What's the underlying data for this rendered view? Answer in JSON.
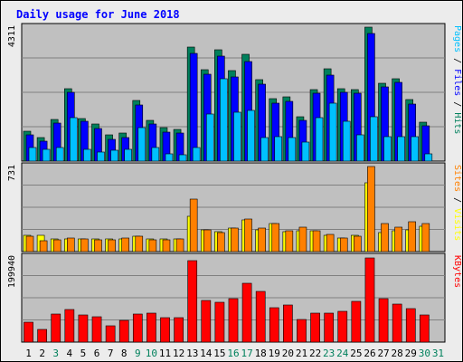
{
  "chart_data": {
    "type": "bar",
    "title": "Daily usage for June 2018",
    "x": [
      "1",
      "2",
      "3",
      "4",
      "5",
      "6",
      "7",
      "8",
      "9",
      "10",
      "11",
      "12",
      "13",
      "14",
      "15",
      "16",
      "17",
      "18",
      "19",
      "20",
      "21",
      "22",
      "23",
      "24",
      "25",
      "26",
      "27",
      "28",
      "29",
      "30",
      "31"
    ],
    "weekend_days": [
      "3",
      "9",
      "10",
      "16",
      "17",
      "23",
      "24",
      "30",
      "31"
    ],
    "panels": [
      {
        "id": "hits-files-pages",
        "ymax": 4311,
        "ymax_label": "4311",
        "legend": [
          {
            "text": "Pages",
            "color": "#00c0ff"
          },
          {
            "text": " / ",
            "color": "#000000"
          },
          {
            "text": "Files",
            "color": "#0000ff"
          },
          {
            "text": " / ",
            "color": "#000000"
          },
          {
            "text": "Hits",
            "color": "#00805c"
          }
        ],
        "series": [
          {
            "name": "Hits",
            "color": "#00805c",
            "values": [
              975,
              747,
              1347,
              2337,
              1370,
              1192,
              844,
              893,
              1951,
              1313,
              1066,
              1012,
              3665,
              2930,
              3576,
              2916,
              3450,
              2608,
              2005,
              2072,
              1436,
              2305,
              2985,
              2339,
              2307,
              4311,
              2517,
              2658,
              1982,
              1258,
              null
            ]
          },
          {
            "name": "Files",
            "color": "#0000ff",
            "values": [
              846,
              647,
              1216,
              2216,
              1292,
              1054,
              705,
              767,
              1811,
              1192,
              943,
              899,
              3479,
              2805,
              3380,
              2711,
              3201,
              2479,
              1870,
              1934,
              1297,
              2181,
              2766,
              2203,
              2171,
              4105,
              2375,
              2529,
              1828,
              1134,
              null
            ]
          },
          {
            "name": "Pages",
            "color": "#00c0ff",
            "values": [
              450,
              380,
              449,
              1393,
              380,
              289,
              339,
              380,
              1088,
              444,
              239,
              215,
              444,
              1507,
              2637,
              1572,
              1644,
              752,
              798,
              758,
              600,
              1387,
              1851,
              1281,
              833,
              1419,
              790,
              784,
              789,
              245,
              null
            ]
          }
        ]
      },
      {
        "id": "visits-sites",
        "ymax": 731,
        "ymax_label": "731",
        "legend": [
          {
            "text": "Sites",
            "color": "#ff8000"
          },
          {
            "text": " / ",
            "color": "#000000"
          },
          {
            "text": "Visits",
            "color": "#ffff00"
          }
        ],
        "series": [
          {
            "name": "Visits",
            "color": "#ffff00",
            "values": [
              140,
              140,
              110,
              110,
              110,
              110,
              110,
              110,
              130,
              110,
              110,
              110,
              300,
              190,
              170,
              200,
              270,
              190,
              240,
              170,
              180,
              180,
              140,
              120,
              140,
              590,
              160,
              180,
              190,
              220,
              null
            ]
          },
          {
            "name": "Sites",
            "color": "#ff8000",
            "values": [
              130,
              90,
              100,
              120,
              110,
              100,
              100,
              120,
              130,
              100,
              100,
              110,
              450,
              190,
              160,
              200,
              280,
              200,
              240,
              180,
              210,
              180,
              150,
              120,
              130,
              731,
              240,
              210,
              260,
              240,
              null
            ]
          }
        ]
      },
      {
        "id": "kbytes",
        "ymax": 199940,
        "ymax_label": "199940",
        "legend": [
          {
            "text": "KBytes",
            "color": "#ff0000"
          }
        ],
        "series": [
          {
            "name": "KBytes",
            "color": "#ff0000",
            "values": [
              47700,
              30200,
              66200,
              75800,
              64800,
              58600,
              38600,
              51200,
              66800,
              69000,
              57000,
              56400,
              190900,
              98200,
              93700,
              103100,
              137200,
              119800,
              80500,
              86400,
              54100,
              67900,
              67500,
              71400,
              95800,
              197800,
              101900,
              89600,
              78900,
              63600,
              null
            ]
          }
        ]
      }
    ]
  }
}
